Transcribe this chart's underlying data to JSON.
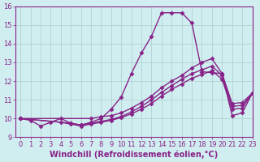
{
  "xlabel": "Windchill (Refroidissement éolien,°C)",
  "ylabel": "",
  "bg_color": "#d0eef0",
  "line_color": "#882288",
  "grid_color": "#aacccc",
  "xlim": [
    -0.5,
    23
  ],
  "ylim": [
    9,
    16
  ],
  "yticks": [
    9,
    10,
    11,
    12,
    13,
    14,
    15,
    16
  ],
  "xticks": [
    0,
    1,
    2,
    3,
    4,
    5,
    6,
    7,
    8,
    9,
    10,
    11,
    12,
    13,
    14,
    15,
    16,
    17,
    18,
    19,
    20,
    21,
    22,
    23
  ],
  "series": [
    {
      "x": [
        0,
        1,
        2,
        3,
        4,
        5,
        6,
        7,
        8,
        9,
        10,
        11,
        12,
        13,
        14,
        15,
        16,
        17,
        18,
        19,
        20,
        21,
        22,
        23
      ],
      "y": [
        10.0,
        9.9,
        9.6,
        9.8,
        10.0,
        9.75,
        9.65,
        9.8,
        10.0,
        10.5,
        11.15,
        12.4,
        13.5,
        14.4,
        15.65,
        15.65,
        15.65,
        15.1,
        12.5,
        12.45,
        12.4,
        10.15,
        10.3,
        11.35
      ]
    },
    {
      "x": [
        0,
        7,
        8,
        9,
        10,
        11,
        12,
        13,
        14,
        15,
        16,
        17,
        18,
        19,
        20,
        21,
        22,
        23
      ],
      "y": [
        10.0,
        10.0,
        10.1,
        10.15,
        10.3,
        10.55,
        10.85,
        11.2,
        11.65,
        12.0,
        12.3,
        12.7,
        13.0,
        13.2,
        12.4,
        10.8,
        10.85,
        11.35
      ]
    },
    {
      "x": [
        0,
        5,
        6,
        7,
        8,
        9,
        10,
        11,
        12,
        13,
        14,
        15,
        16,
        17,
        18,
        19,
        20,
        21,
        22,
        23
      ],
      "y": [
        10.0,
        9.75,
        9.65,
        9.75,
        9.85,
        9.95,
        10.1,
        10.35,
        10.65,
        11.0,
        11.4,
        11.75,
        12.1,
        12.4,
        12.6,
        12.8,
        12.3,
        10.65,
        10.7,
        11.35
      ]
    },
    {
      "x": [
        0,
        4,
        5,
        6,
        7,
        8,
        9,
        10,
        11,
        12,
        13,
        14,
        15,
        16,
        17,
        18,
        19,
        20,
        21,
        22,
        23
      ],
      "y": [
        10.0,
        9.8,
        9.7,
        9.6,
        9.7,
        9.8,
        9.9,
        10.05,
        10.25,
        10.5,
        10.8,
        11.2,
        11.55,
        11.85,
        12.15,
        12.35,
        12.55,
        12.1,
        10.5,
        10.55,
        11.35
      ]
    }
  ],
  "marker": "D",
  "markersize": 2.5,
  "linewidth": 1.0,
  "tick_fontsize": 6,
  "label_fontsize": 7
}
